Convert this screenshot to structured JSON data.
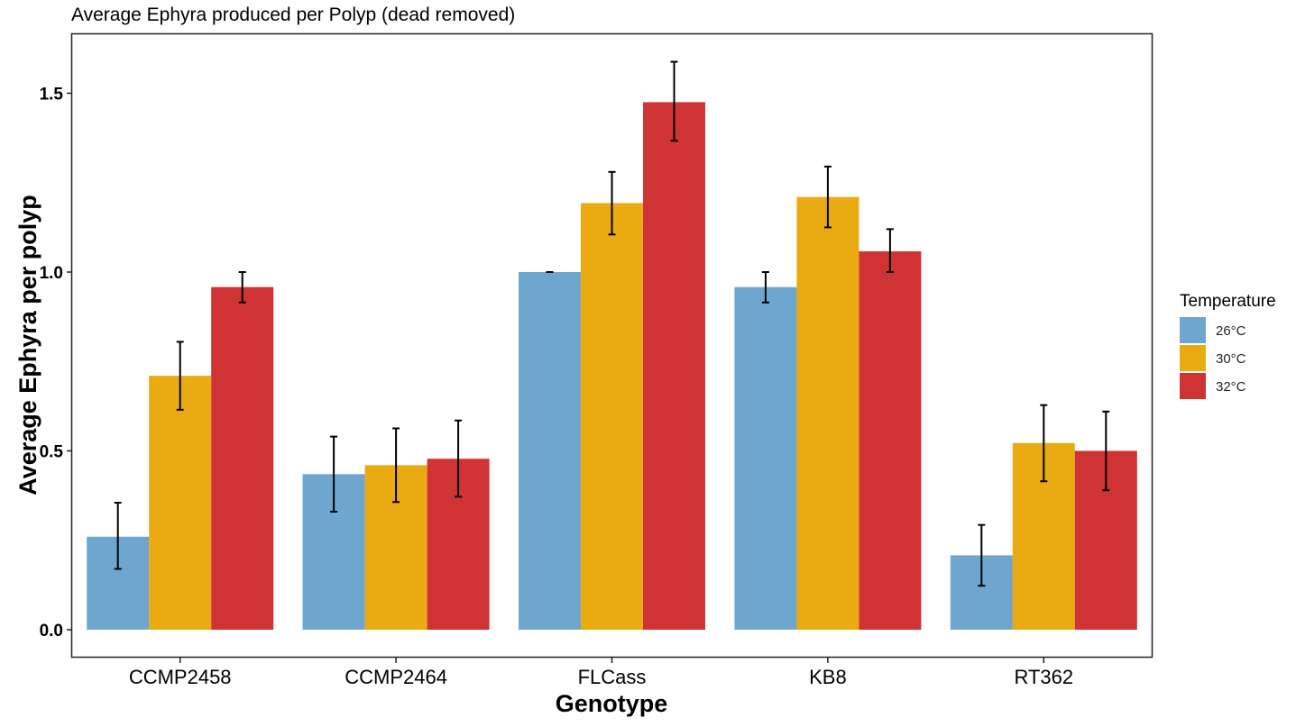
{
  "chart_data": {
    "type": "bar",
    "title": "Average Ephyra produced per Polyp (dead removed)",
    "xlabel": "Genotype",
    "ylabel": "Average Ephyra per polyp",
    "categories": [
      "CCMP2458",
      "CCMP2464",
      "FLCass",
      "KB8",
      "RT362"
    ],
    "ylim": [
      -0.08,
      1.67
    ],
    "yticks": [
      0.0,
      0.5,
      1.0,
      1.5
    ],
    "ytick_labels": [
      "0.0",
      "0.5",
      "1.0",
      "1.5"
    ],
    "grid": false,
    "error_bars": true,
    "legend": {
      "title": "Temperature",
      "placement": "right"
    },
    "series": [
      {
        "name": "26°C",
        "color": "#6DA6CE",
        "values": [
          0.26,
          0.435,
          1.0,
          0.958,
          0.208
        ],
        "err_low": [
          0.17,
          0.33,
          1.0,
          0.915,
          0.123
        ],
        "err_high": [
          0.355,
          0.54,
          1.0,
          1.0,
          0.293
        ]
      },
      {
        "name": "30°C",
        "color": "#EAAB12",
        "values": [
          0.71,
          0.46,
          1.193,
          1.21,
          0.522
        ],
        "err_low": [
          0.615,
          0.357,
          1.105,
          1.125,
          0.415
        ],
        "err_high": [
          0.805,
          0.563,
          1.28,
          1.295,
          0.628
        ]
      },
      {
        "name": "32°C",
        "color": "#CF3333",
        "values": [
          0.958,
          0.478,
          1.475,
          1.058,
          0.5
        ],
        "err_low": [
          0.915,
          0.372,
          1.367,
          1.0,
          0.39
        ],
        "err_high": [
          1.0,
          0.585,
          1.588,
          1.12,
          0.61
        ]
      }
    ]
  }
}
